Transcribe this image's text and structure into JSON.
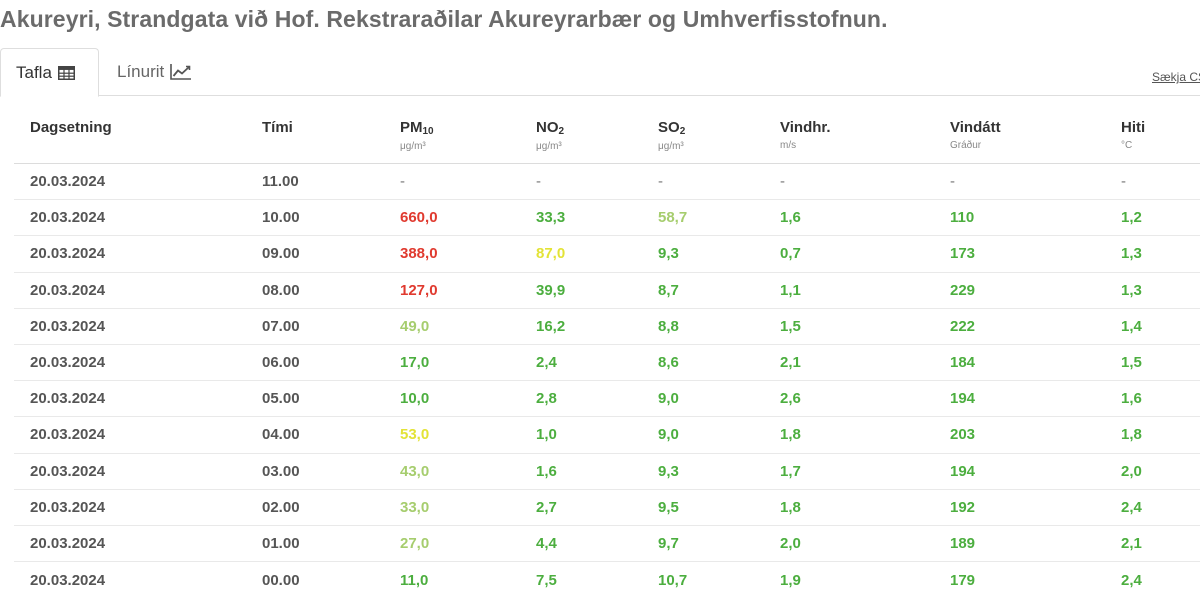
{
  "page": {
    "title": "Akureyri, Strandgata við Hof. Rekstraraðilar Akureyrarbær og Umhverfisstofnun."
  },
  "tabs": [
    {
      "label": "Tafla",
      "icon": "table-icon",
      "active": true
    },
    {
      "label": "Línurit",
      "icon": "line-chart-icon",
      "active": false
    }
  ],
  "download": {
    "label": "Sækja CSV"
  },
  "colors": {
    "good": "#4cae3f",
    "fair": "#a6cd6e",
    "moderate": "#e3e336",
    "bad": "#e03a2f",
    "neutral": "#555555"
  },
  "table": {
    "columns": [
      {
        "label": "Dagsetning",
        "sub": "",
        "unit": ""
      },
      {
        "label": "Tími",
        "sub": "",
        "unit": ""
      },
      {
        "label": "PM",
        "sub": "10",
        "unit": "μg/m³"
      },
      {
        "label": "NO",
        "sub": "2",
        "unit": "μg/m³"
      },
      {
        "label": "SO",
        "sub": "2",
        "unit": "μg/m³"
      },
      {
        "label": "Vindhr.",
        "sub": "",
        "unit": "m/s"
      },
      {
        "label": "Vindátt",
        "sub": "",
        "unit": "Gráður"
      },
      {
        "label": "Hiti",
        "sub": "",
        "unit": "°C"
      }
    ],
    "rows": [
      {
        "date": "20.03.2024",
        "time": "11.00",
        "values": [
          "-",
          "-",
          "-",
          "-",
          "-",
          "-"
        ],
        "levels": [
          "none",
          "none",
          "none",
          "none",
          "none",
          "none"
        ]
      },
      {
        "date": "20.03.2024",
        "time": "10.00",
        "values": [
          "660,0",
          "33,3",
          "58,7",
          "1,6",
          "110",
          "1,2"
        ],
        "levels": [
          "bad",
          "good",
          "fair",
          "good",
          "good",
          "good"
        ]
      },
      {
        "date": "20.03.2024",
        "time": "09.00",
        "values": [
          "388,0",
          "87,0",
          "9,3",
          "0,7",
          "173",
          "1,3"
        ],
        "levels": [
          "bad",
          "moderate",
          "good",
          "good",
          "good",
          "good"
        ]
      },
      {
        "date": "20.03.2024",
        "time": "08.00",
        "values": [
          "127,0",
          "39,9",
          "8,7",
          "1,1",
          "229",
          "1,3"
        ],
        "levels": [
          "bad",
          "good",
          "good",
          "good",
          "good",
          "good"
        ]
      },
      {
        "date": "20.03.2024",
        "time": "07.00",
        "values": [
          "49,0",
          "16,2",
          "8,8",
          "1,5",
          "222",
          "1,4"
        ],
        "levels": [
          "fair",
          "good",
          "good",
          "good",
          "good",
          "good"
        ]
      },
      {
        "date": "20.03.2024",
        "time": "06.00",
        "values": [
          "17,0",
          "2,4",
          "8,6",
          "2,1",
          "184",
          "1,5"
        ],
        "levels": [
          "good",
          "good",
          "good",
          "good",
          "good",
          "good"
        ]
      },
      {
        "date": "20.03.2024",
        "time": "05.00",
        "values": [
          "10,0",
          "2,8",
          "9,0",
          "2,6",
          "194",
          "1,6"
        ],
        "levels": [
          "good",
          "good",
          "good",
          "good",
          "good",
          "good"
        ]
      },
      {
        "date": "20.03.2024",
        "time": "04.00",
        "values": [
          "53,0",
          "1,0",
          "9,0",
          "1,8",
          "203",
          "1,8"
        ],
        "levels": [
          "moderate",
          "good",
          "good",
          "good",
          "good",
          "good"
        ]
      },
      {
        "date": "20.03.2024",
        "time": "03.00",
        "values": [
          "43,0",
          "1,6",
          "9,3",
          "1,7",
          "194",
          "2,0"
        ],
        "levels": [
          "fair",
          "good",
          "good",
          "good",
          "good",
          "good"
        ]
      },
      {
        "date": "20.03.2024",
        "time": "02.00",
        "values": [
          "33,0",
          "2,7",
          "9,5",
          "1,8",
          "192",
          "2,4"
        ],
        "levels": [
          "fair",
          "good",
          "good",
          "good",
          "good",
          "good"
        ]
      },
      {
        "date": "20.03.2024",
        "time": "01.00",
        "values": [
          "27,0",
          "4,4",
          "9,7",
          "2,0",
          "189",
          "2,1"
        ],
        "levels": [
          "fair",
          "good",
          "good",
          "good",
          "good",
          "good"
        ]
      },
      {
        "date": "20.03.2024",
        "time": "00.00",
        "values": [
          "11,0",
          "7,5",
          "10,7",
          "1,9",
          "179",
          "2,4"
        ],
        "levels": [
          "good",
          "good",
          "good",
          "good",
          "good",
          "good"
        ]
      }
    ]
  }
}
